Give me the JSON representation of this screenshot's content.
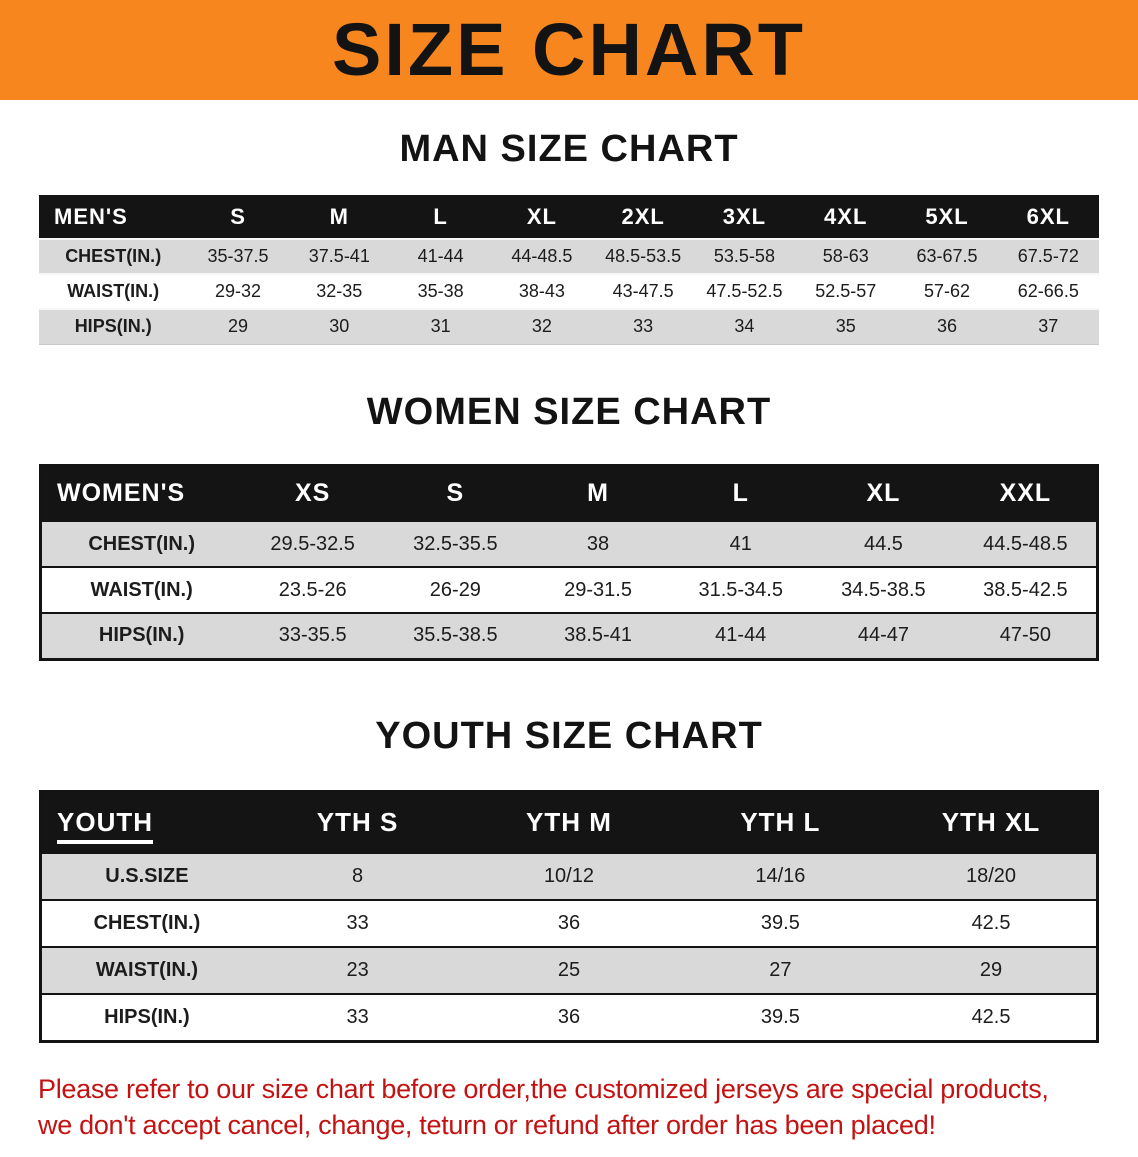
{
  "banner": {
    "title": "SIZE CHART"
  },
  "sections": [
    {
      "id": "men",
      "heading": "MAN SIZE CHART",
      "table": {
        "header": [
          "MEN'S",
          "S",
          "M",
          "L",
          "XL",
          "2XL",
          "3XL",
          "4XL",
          "5XL",
          "6XL"
        ],
        "rows": [
          [
            "CHEST(IN.)",
            "35-37.5",
            "37.5-41",
            "41-44",
            "44-48.5",
            "48.5-53.5",
            "53.5-58",
            "58-63",
            "63-67.5",
            "67.5-72"
          ],
          [
            "WAIST(IN.)",
            "29-32",
            "32-35",
            "35-38",
            "38-43",
            "43-47.5",
            "47.5-52.5",
            "52.5-57",
            "57-62",
            "62-66.5"
          ],
          [
            "HIPS(IN.)",
            "29",
            "30",
            "31",
            "32",
            "33",
            "34",
            "35",
            "36",
            "37"
          ]
        ]
      }
    },
    {
      "id": "women",
      "heading": "WOMEN SIZE CHART",
      "table": {
        "header": [
          "WOMEN'S",
          "XS",
          "S",
          "M",
          "L",
          "XL",
          "XXL"
        ],
        "rows": [
          [
            "CHEST(IN.)",
            "29.5-32.5",
            "32.5-35.5",
            "38",
            "41",
            "44.5",
            "44.5-48.5"
          ],
          [
            "WAIST(IN.)",
            "23.5-26",
            "26-29",
            "29-31.5",
            "31.5-34.5",
            "34.5-38.5",
            "38.5-42.5"
          ],
          [
            "HIPS(IN.)",
            "33-35.5",
            "35.5-38.5",
            "38.5-41",
            "41-44",
            "44-47",
            "47-50"
          ]
        ]
      }
    },
    {
      "id": "youth",
      "heading": "YOUTH SIZE CHART",
      "table": {
        "header": [
          "YOUTH",
          "YTH S",
          "YTH M",
          "YTH L",
          "YTH XL"
        ],
        "rows": [
          [
            "U.S.SIZE",
            "8",
            "10/12",
            "14/16",
            "18/20"
          ],
          [
            "CHEST(IN.)",
            "33",
            "36",
            "39.5",
            "42.5"
          ],
          [
            "WAIST(IN.)",
            "23",
            "25",
            "27",
            "29"
          ],
          [
            "HIPS(IN.)",
            "33",
            "36",
            "39.5",
            "42.5"
          ]
        ]
      }
    }
  ],
  "disclaimer": {
    "line1": "Please refer to our size chart before order,the customized jerseys are special products,",
    "line2": "we don't accept cancel, change, teturn or refund after order has been placed!"
  },
  "colors": {
    "banner_bg": "#f6861d",
    "table_header_bg": "#141414",
    "row_shade": "#d9d9d9",
    "disclaimer_text": "#c41212"
  }
}
